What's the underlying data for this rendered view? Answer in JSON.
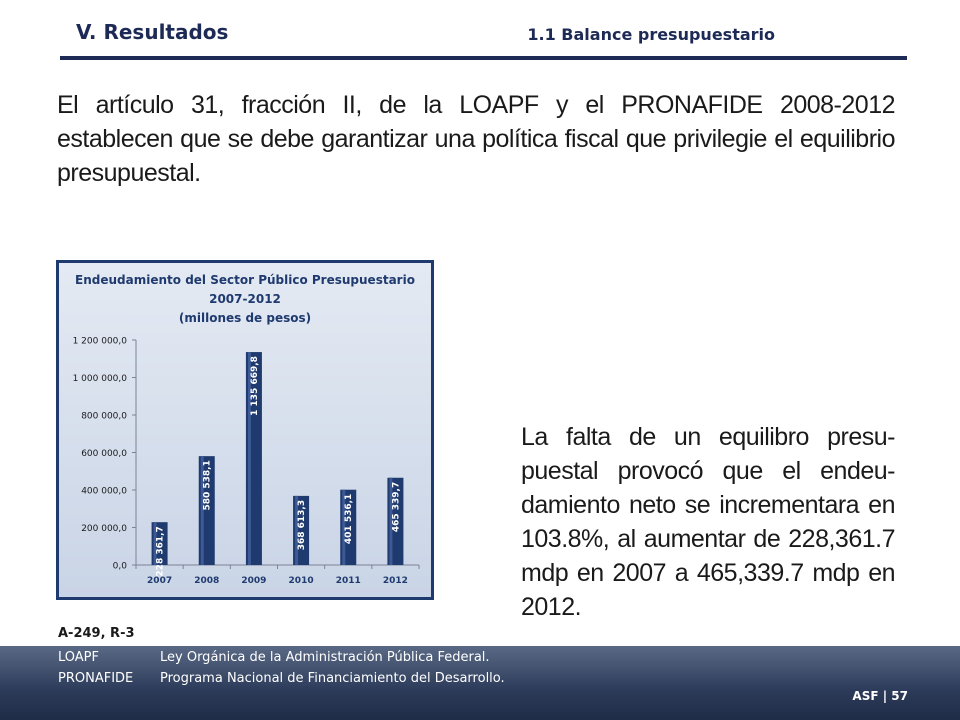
{
  "header": {
    "section_title": "V. Resultados",
    "subsection_title": "1.1 Balance presupuestario"
  },
  "intro_text": "El artículo 31, fracción II, de la LOAPF y el PRONAFIDE 2008-2012 establecen que se debe garantizar una política fiscal que privilegie el equilibrio presupuestal.",
  "body_text": "La falta de un equilibro presu-puestal provocó que el endeu-damiento neto se incrementara en 103.8%, al aumentar de 228,361.7 mdp en 2007 a 465,339.7 mdp en 2012.",
  "chart_data": {
    "type": "bar",
    "title": [
      "Endeudamiento del Sector Público Presupuestario",
      "2007-2012",
      "(millones de pesos)"
    ],
    "categories": [
      "2007",
      "2008",
      "2009",
      "2010",
      "2011",
      "2012"
    ],
    "values": [
      228361.7,
      580538.1,
      1135669.8,
      368613.3,
      401536.1,
      465339.7
    ],
    "value_labels": [
      "228 361,7",
      "580 538,1",
      "1 135 669,8",
      "368 613,3",
      "401 536,1",
      "465 339,7"
    ],
    "y_ticks": [
      0,
      200000,
      400000,
      600000,
      800000,
      1000000,
      1200000
    ],
    "y_tick_labels": [
      "0,0",
      "200 000,0",
      "400 000,0",
      "600 000,0",
      "800 000,0",
      "1 000 000,0",
      "1 200 000,0"
    ],
    "ylim": [
      0,
      1200000
    ],
    "bar_color": "#1f3a6e",
    "grid": false,
    "legend": "none"
  },
  "footer": {
    "reference": "A-249, R-3",
    "glossary": [
      {
        "abbr": "LOAPF",
        "meaning": "Ley Orgánica de la Administración Pública Federal."
      },
      {
        "abbr": "PRONAFIDE",
        "meaning": "Programa Nacional de Financiamiento del Desarrollo."
      }
    ],
    "page_label": "ASF | 57"
  },
  "colors": {
    "title_navy": "#1d2a55",
    "footer_band": "#2c3b59"
  }
}
